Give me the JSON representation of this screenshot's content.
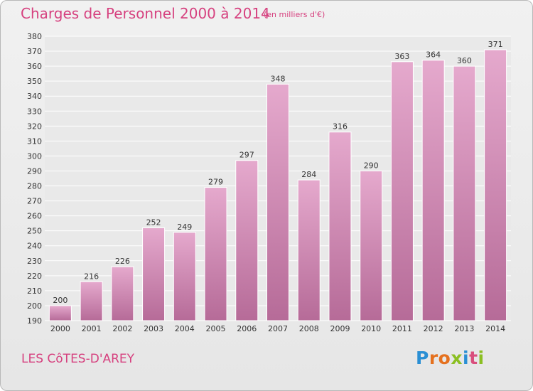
{
  "header": {
    "title": "Charges de Personnel 2000 à 2014",
    "subtitle": "(en milliers d'€)"
  },
  "footer": {
    "place": "LES CôTES-D'AREY",
    "logo": {
      "letters": [
        "P",
        "r",
        "o",
        "x",
        "i",
        "t",
        "i"
      ],
      "colors": [
        "#2a8fd4",
        "#e5711f",
        "#e5711f",
        "#8bbf22",
        "#2a8fd4",
        "#d94f7d",
        "#8bbf22"
      ]
    }
  },
  "colors": {
    "accent": "#d6417f",
    "bar_light": "#e5a9cd",
    "bar_dark": "#b66b98",
    "grid": "#ffffff",
    "text": "#333333"
  },
  "chart_data": {
    "type": "bar",
    "title": "Charges de Personnel 2000 à 2014",
    "subtitle": "(en milliers d'€)",
    "categories": [
      "2000",
      "2001",
      "2002",
      "2003",
      "2004",
      "2005",
      "2006",
      "2007",
      "2008",
      "2009",
      "2010",
      "2011",
      "2012",
      "2013",
      "2014"
    ],
    "values": [
      200,
      216,
      226,
      252,
      249,
      279,
      297,
      348,
      284,
      316,
      290,
      363,
      364,
      360,
      371
    ],
    "ylim": [
      190,
      380
    ],
    "yticks": [
      190,
      200,
      210,
      220,
      230,
      240,
      250,
      260,
      270,
      280,
      290,
      300,
      310,
      320,
      330,
      340,
      350,
      360,
      370,
      380
    ],
    "grid": true,
    "xlabel": "",
    "ylabel": ""
  }
}
